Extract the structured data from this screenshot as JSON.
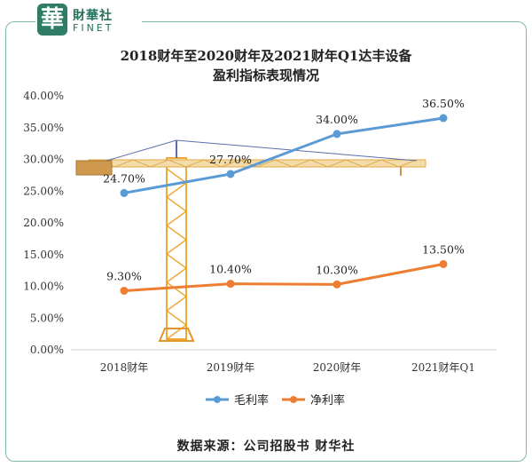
{
  "logo": {
    "mark": "華",
    "cn": "財華社",
    "en": "FINET"
  },
  "chart_data": {
    "type": "line",
    "title_line1": "2018财年至2020财年及2021财年Q1达丰设备",
    "title_line2": "盈利指标表现情况",
    "categories": [
      "2018财年",
      "2019财年",
      "2020财年",
      "2021财年Q1"
    ],
    "y_ticks": [
      "0.00%",
      "5.00%",
      "10.00%",
      "15.00%",
      "20.00%",
      "25.00%",
      "30.00%",
      "35.00%",
      "40.00%"
    ],
    "ylim": [
      0,
      40
    ],
    "series": [
      {
        "name": "毛利率",
        "color": "#5b9bd5",
        "values": [
          24.7,
          27.7,
          34.0,
          36.5
        ],
        "labels": [
          "24.70%",
          "27.70%",
          "34.00%",
          "36.50%"
        ]
      },
      {
        "name": "净利率",
        "color": "#ed7d31",
        "values": [
          9.3,
          10.4,
          10.3,
          13.5
        ],
        "labels": [
          "9.30%",
          "10.40%",
          "10.30%",
          "13.50%"
        ]
      }
    ],
    "legend_position": "bottom-center",
    "grid": false
  },
  "source": "数据来源：公司招股书  财华社"
}
